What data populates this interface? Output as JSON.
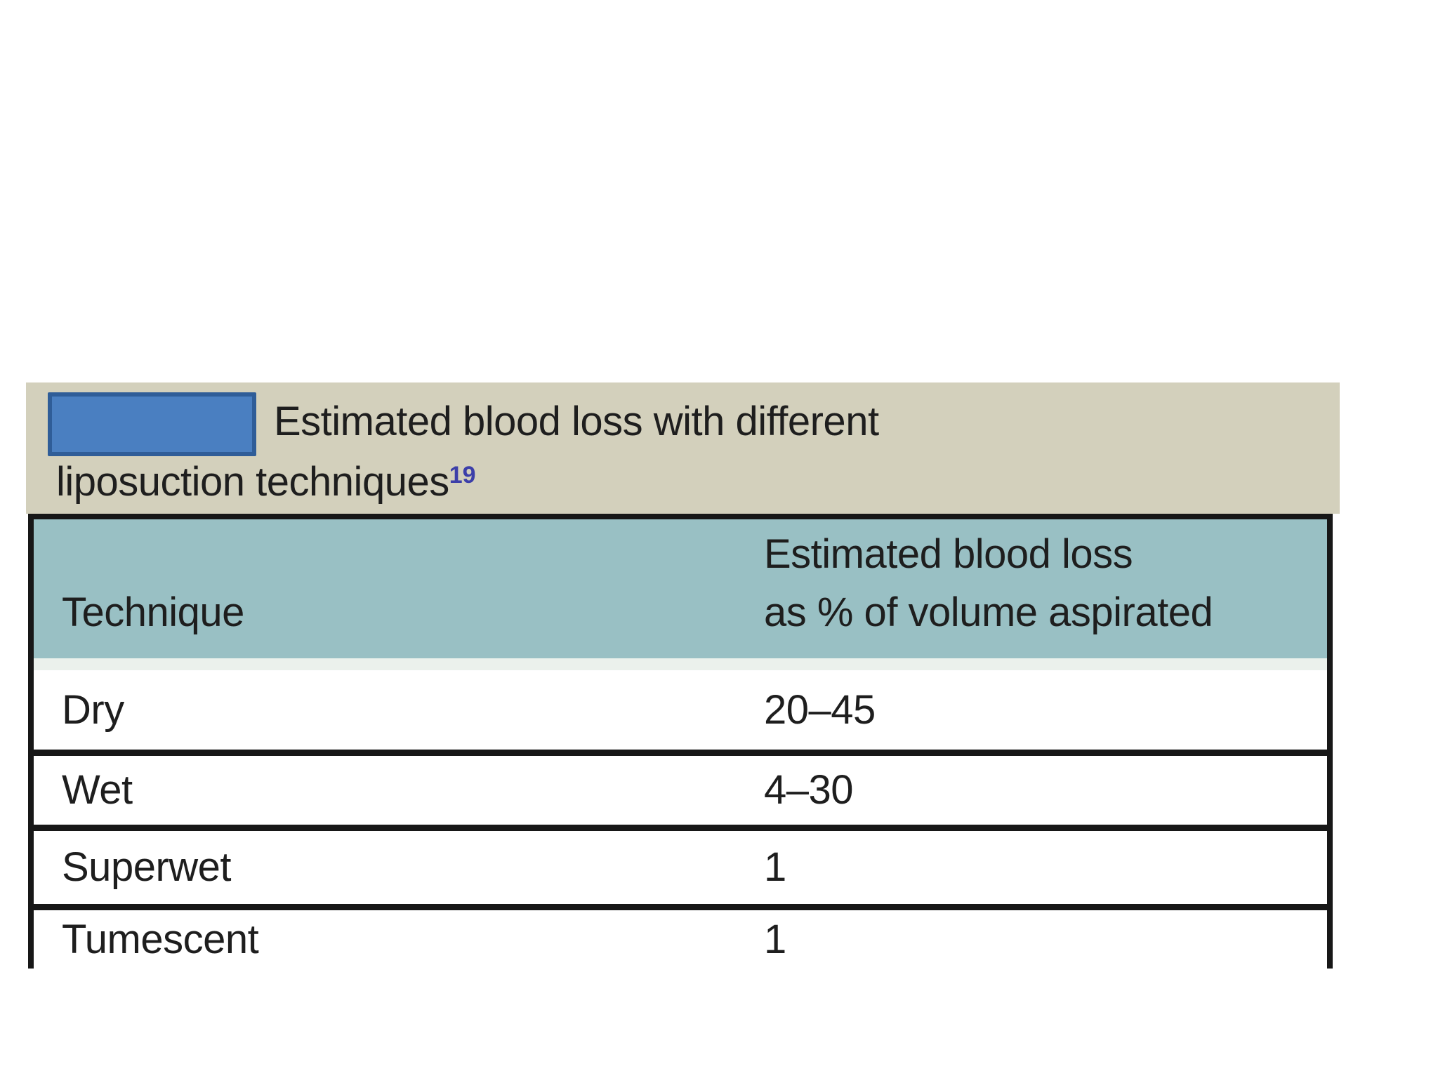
{
  "figure": {
    "caption": {
      "title_part1": "Estimated blood loss with different",
      "title_part2": "liposuction techniques",
      "reference_superscript": "19"
    },
    "colors": {
      "caption_band": "#d3d0bc",
      "label_box_fill": "#4a7fc1",
      "label_box_border": "#2f5d98",
      "table_header": "#99c0c4",
      "reference_superscript": "#3c3fa9",
      "border_black": "#171717"
    }
  },
  "table": {
    "col1_header": "Technique",
    "col2_header_line1": "Estimated blood loss",
    "col2_header_line2": "as % of volume aspirated",
    "rows": [
      {
        "technique": "Dry",
        "value": "20–45"
      },
      {
        "technique": "Wet",
        "value": "4–30"
      },
      {
        "technique": "Superwet",
        "value": "1"
      },
      {
        "technique": "Tumescent",
        "value": "1"
      }
    ]
  },
  "chart_data": {
    "type": "table",
    "title": "Estimated blood loss with different liposuction techniques",
    "columns": [
      "Technique",
      "Estimated blood loss as % of volume aspirated"
    ],
    "rows": [
      [
        "Dry",
        "20–45"
      ],
      [
        "Wet",
        "4–30"
      ],
      [
        "Superwet",
        "1"
      ],
      [
        "Tumescent",
        "1"
      ]
    ]
  }
}
